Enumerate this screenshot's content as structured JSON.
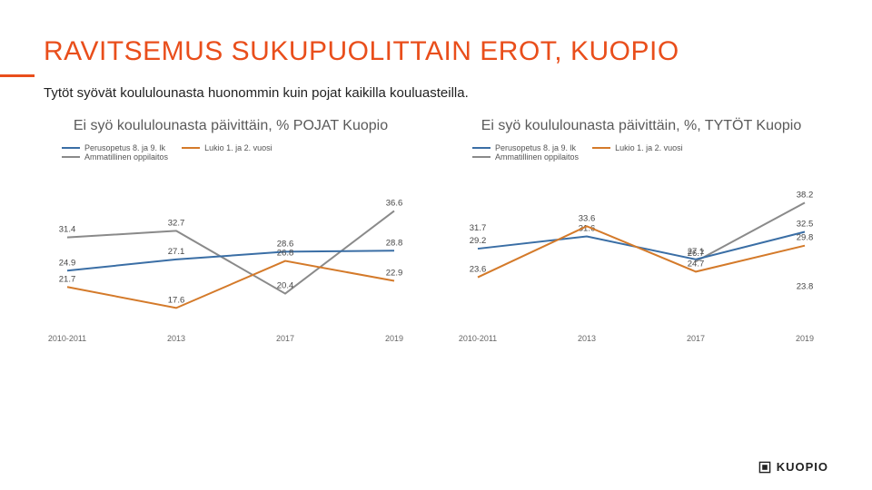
{
  "title": "RAVITSEMUS SUKUPUOLITTAIN EROT, KUOPIO",
  "subtitle": "Tytöt syövät koululounasta huonommin kuin pojat kaikilla kouluasteilla.",
  "accent_color": "#e94e1b",
  "logo_text": "KUOPIO",
  "legend": {
    "s1": "Perusopetus 8. ja 9. lk",
    "s2": "Lukio 1. ja 2. vuosi",
    "s3": "Ammatillinen oppilaitos"
  },
  "series_colors": {
    "s1": "#3a6ea5",
    "s2": "#d47a2a",
    "s3": "#8a8a8a"
  },
  "chart_left": {
    "title": "Ei syö koululounasta päivittäin, % POJAT Kuopio",
    "type": "line",
    "categories": [
      "2010-2011",
      "2013",
      "2017",
      "2019"
    ],
    "ylim": [
      15,
      42
    ],
    "series": {
      "s1": [
        24.9,
        27.1,
        28.6,
        28.8
      ],
      "s2": [
        21.7,
        17.6,
        26.8,
        22.9
      ],
      "s3": [
        31.4,
        32.7,
        20.4,
        36.6
      ]
    },
    "line_width": 2
  },
  "chart_right": {
    "title": "Ei syö koululounasta päivittäin, %, TYTÖT Kuopio",
    "type": "line",
    "categories": [
      "2010-2011",
      "2013",
      "2017",
      "2019"
    ],
    "ylim": [
      15,
      42
    ],
    "series": {
      "s1": [
        29.2,
        31.6,
        27.1,
        32.5
      ],
      "s2": [
        23.6,
        33.6,
        24.7,
        29.8
      ],
      "s3": [
        31.7,
        null,
        26.7,
        38.2
      ]
    },
    "extra_labels": [
      {
        "x_index": 3,
        "y": 23.8,
        "text": "23.8"
      }
    ],
    "line_width": 2
  },
  "background_color": "#ffffff",
  "label_fontsize": 9.5,
  "title_fontsize": 30
}
